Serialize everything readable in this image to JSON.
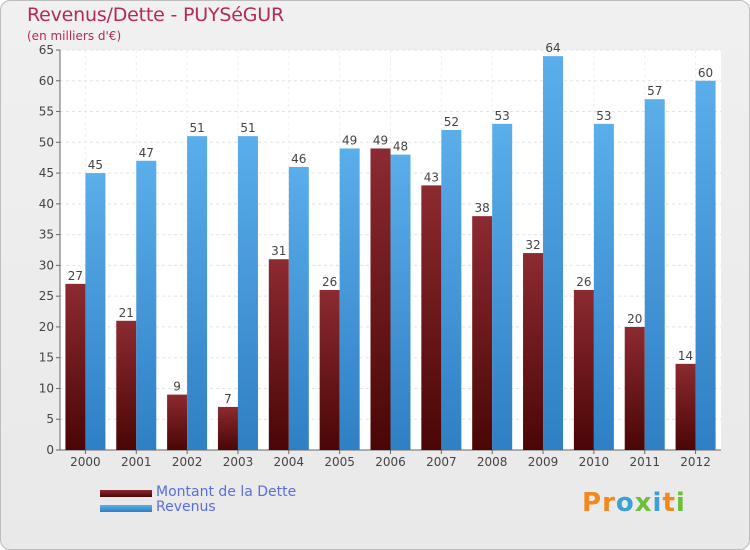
{
  "title": "Revenus/Dette - PUYSéGUR",
  "subtitle": "(en milliers d'€)",
  "legend": {
    "debt_label": "Montant de la Dette",
    "revenue_label": "Revenus"
  },
  "logo": {
    "letters": [
      "P",
      "r",
      "o",
      "x",
      "i",
      "t",
      "i"
    ]
  },
  "colors": {
    "debt_top": "#8c2a31",
    "debt_bottom": "#4a0606",
    "revenue_top": "#5aaeea",
    "revenue_bottom": "#2f7fc4",
    "title": "#b5295b",
    "legend_text": "#5b6ee1"
  },
  "chart_data": {
    "type": "bar",
    "title": "Revenus/Dette - PUYSéGUR",
    "ylabel": "(en milliers d'€)",
    "categories": [
      "2000",
      "2001",
      "2002",
      "2003",
      "2004",
      "2005",
      "2006",
      "2007",
      "2008",
      "2009",
      "2010",
      "2011",
      "2012"
    ],
    "series": [
      {
        "name": "Montant de la Dette",
        "values": [
          27,
          21,
          9,
          7,
          31,
          26,
          49,
          43,
          38,
          32,
          26,
          20,
          14
        ]
      },
      {
        "name": "Revenus",
        "values": [
          45,
          47,
          51,
          51,
          46,
          49,
          48,
          52,
          53,
          64,
          53,
          57,
          60
        ]
      }
    ],
    "ylim": [
      0,
      65
    ],
    "yticks": [
      0,
      5,
      10,
      15,
      20,
      25,
      30,
      35,
      40,
      45,
      50,
      55,
      60,
      65
    ],
    "grid": true,
    "legend_position": "bottom-left"
  }
}
